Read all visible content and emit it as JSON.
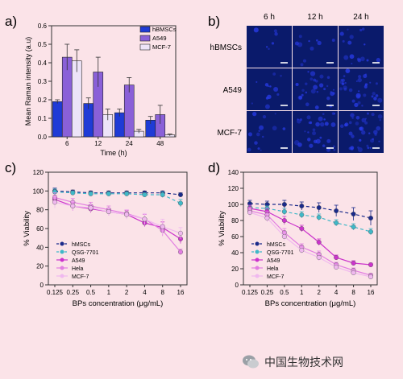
{
  "panels": {
    "a": {
      "letter": "a)"
    },
    "b": {
      "letter": "b)"
    },
    "c": {
      "letter": "c)"
    },
    "d": {
      "letter": "d)"
    }
  },
  "microscopy": {
    "columns": [
      "6 h",
      "12 h",
      "24 h"
    ],
    "rows": [
      "hBMSCs",
      "A549",
      "MCF-7"
    ],
    "intensity": [
      [
        0.15,
        0.25,
        0.4
      ],
      [
        0.3,
        0.7,
        0.85
      ],
      [
        0.35,
        0.8,
        0.9
      ]
    ],
    "tile_color": "#0a1a6b"
  },
  "watermark": {
    "text": "中国生物技术网",
    "icon": "wechat-icon"
  },
  "chart_data": [
    {
      "id": "a",
      "type": "bar",
      "xlabel": "Time (h)",
      "ylabel": "Mean Raman intensity (a.u)",
      "categories": [
        "6",
        "12",
        "24",
        "48"
      ],
      "ylim": [
        0,
        0.6
      ],
      "yticks": [
        "0.0",
        "0.1",
        "0.2",
        "0.3",
        "0.4",
        "0.5",
        "0.6"
      ],
      "legend_position": "top-right",
      "series": [
        {
          "name": "hBMSCs",
          "color": "#1f3bd6",
          "values": [
            0.19,
            0.18,
            0.13,
            0.09
          ],
          "errors": [
            0.01,
            0.03,
            0.02,
            0.02
          ]
        },
        {
          "name": "A549",
          "color": "#8a60d8",
          "values": [
            0.43,
            0.35,
            0.28,
            0.12
          ],
          "errors": [
            0.07,
            0.08,
            0.04,
            0.05
          ]
        },
        {
          "name": "MCF-7",
          "color": "#ede4f8",
          "values": [
            0.41,
            0.12,
            0.03,
            0.01
          ],
          "errors": [
            0.06,
            0.03,
            0.01,
            0.005
          ]
        }
      ]
    },
    {
      "id": "c",
      "type": "scatter",
      "xlabel": "BPs concentration (μg/mL)",
      "ylabel": "% Viability",
      "categories": [
        "0.125",
        "0.25",
        "0.5",
        "1",
        "2",
        "4",
        "8",
        "16"
      ],
      "ylim": [
        0,
        120
      ],
      "yticks": [
        "0",
        "20",
        "40",
        "60",
        "80",
        "100",
        "120"
      ],
      "legend_position": "bottom-left",
      "series": [
        {
          "name": "hMSCs",
          "color": "#1a2a8a",
          "dashed": true,
          "values": [
            100,
            99,
            98,
            98,
            98,
            98,
            98,
            96
          ],
          "errors": [
            3,
            2,
            2,
            2,
            2,
            2,
            2,
            2
          ]
        },
        {
          "name": "QSG-7701",
          "color": "#3fb8c8",
          "dashed": true,
          "values": [
            99,
            98,
            97,
            97,
            97,
            96,
            96,
            87
          ],
          "errors": [
            3,
            2,
            2,
            2,
            2,
            2,
            3,
            4
          ]
        },
        {
          "name": "A549",
          "color": "#cc33cc",
          "dashed": false,
          "values": [
            91,
            84,
            81,
            78,
            75,
            66,
            61,
            49
          ],
          "errors": [
            4,
            5,
            4,
            4,
            4,
            4,
            6,
            5
          ]
        },
        {
          "name": "Hela",
          "color": "#e27ee2",
          "dashed": false,
          "values": [
            93,
            88,
            84,
            80,
            76,
            70,
            58,
            35
          ],
          "errors": [
            5,
            4,
            4,
            4,
            4,
            5,
            6,
            3
          ]
        },
        {
          "name": "MCF-7",
          "color": "#f0b8ef",
          "dashed": false,
          "values": [
            88,
            84,
            82,
            78,
            75,
            70,
            62,
            55
          ],
          "errors": [
            6,
            5,
            4,
            4,
            5,
            6,
            8,
            6
          ]
        }
      ]
    },
    {
      "id": "d",
      "type": "scatter",
      "xlabel": "BPs concentration (μg/mL)",
      "ylabel": "% Viability",
      "categories": [
        "0.125",
        "0.25",
        "0.5",
        "1",
        "2",
        "4",
        "8",
        "16"
      ],
      "ylim": [
        0,
        140
      ],
      "yticks": [
        "0",
        "20",
        "40",
        "60",
        "80",
        "100",
        "120",
        "140"
      ],
      "legend_position": "bottom-left",
      "series": [
        {
          "name": "hMSCs",
          "color": "#1a2a8a",
          "dashed": true,
          "values": [
            101,
            100,
            100,
            98,
            96,
            92,
            88,
            83
          ],
          "errors": [
            4,
            4,
            5,
            5,
            6,
            7,
            8,
            9
          ]
        },
        {
          "name": "QSG-7701",
          "color": "#3fb8c8",
          "dashed": true,
          "values": [
            96,
            95,
            91,
            87,
            84,
            77,
            72,
            66
          ],
          "errors": [
            3,
            3,
            4,
            4,
            4,
            4,
            4,
            4
          ]
        },
        {
          "name": "A549",
          "color": "#cc33cc",
          "dashed": false,
          "values": [
            95,
            91,
            80,
            70,
            53,
            34,
            27,
            25
          ],
          "errors": [
            4,
            4,
            5,
            4,
            4,
            3,
            3,
            2
          ]
        },
        {
          "name": "Hela",
          "color": "#e27ee2",
          "dashed": false,
          "values": [
            92,
            87,
            65,
            47,
            38,
            25,
            18,
            12
          ],
          "errors": [
            4,
            4,
            5,
            4,
            4,
            3,
            3,
            2
          ]
        },
        {
          "name": "MCF-7",
          "color": "#f0b8ef",
          "dashed": false,
          "values": [
            90,
            83,
            60,
            43,
            34,
            22,
            15,
            10
          ],
          "errors": [
            5,
            5,
            5,
            4,
            4,
            3,
            3,
            2
          ]
        }
      ]
    }
  ]
}
